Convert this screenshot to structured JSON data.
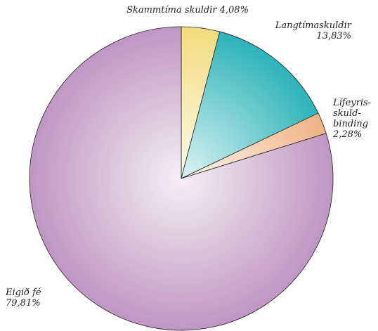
{
  "chart_data": {
    "type": "pie",
    "categories": [
      "Skammtíma skuldir",
      "Langtímaskuldir",
      "Lífeyris-skuld-binding",
      "Eigið fé"
    ],
    "values": [
      4.08,
      13.83,
      2.28,
      79.81
    ],
    "value_labels": [
      "4,08%",
      "13,83%",
      "2,28%",
      "79,81%"
    ],
    "colors": [
      "#f3dc7e",
      "#2cb3b9",
      "#f0b386",
      "#c096c2"
    ]
  }
}
